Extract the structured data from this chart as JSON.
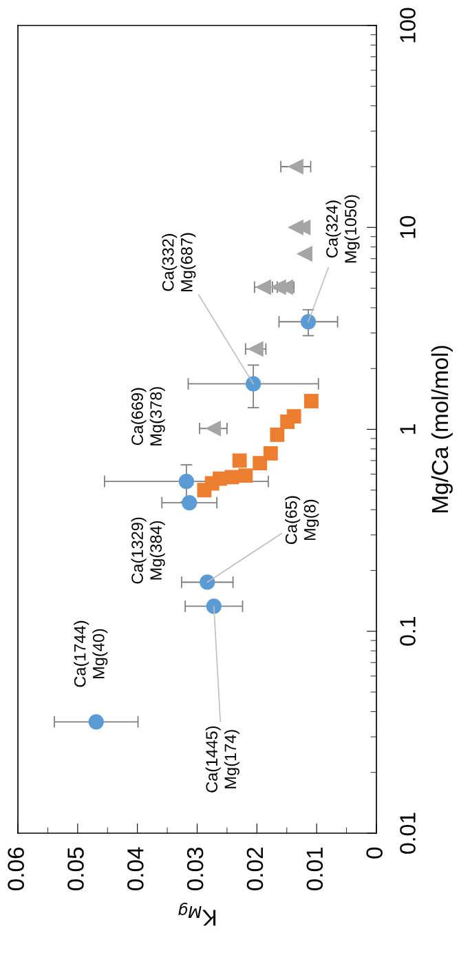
{
  "chart_data": {
    "type": "scatter",
    "xlabel": "K$_{Mg}$",
    "ylabel": "Mg/Ca (mol/mol)",
    "xlim": [
      0.06,
      0
    ],
    "xticks": [
      0.06,
      0.05,
      0.04,
      0.03,
      0.02,
      0.01,
      0
    ],
    "log": "y",
    "ylim": [
      0.01,
      100
    ],
    "yticks": [
      0.01,
      0.1,
      1,
      10,
      100
    ],
    "grid": false,
    "legend": false,
    "series": [
      {
        "color": "#5b9bd5",
        "marker": "circle",
        "x": [
          0.0469,
          0.0272,
          0.0283,
          0.0313,
          0.0318,
          0.0206,
          0.0114
        ],
        "values": [
          0.0356,
          0.133,
          0.175,
          0.433,
          0.552,
          1.68,
          3.41
        ],
        "xerrors": [
          0.007,
          0.0048,
          0.0043,
          0.0046,
          0.0137,
          0.0109,
          0.0049
        ],
        "errors": [
          null,
          null,
          null,
          null,
          0.115,
          0.4,
          0.5
        ]
      },
      {
        "color": "#ed7d31",
        "marker": "square",
        "x": [
          0.0109,
          0.0138,
          0.0149,
          0.0166,
          0.0177,
          0.0195,
          0.0219,
          0.0229,
          0.0242,
          0.0262,
          0.0275,
          0.0288
        ],
        "values": [
          1.38,
          1.16,
          1.09,
          0.94,
          0.76,
          0.68,
          0.59,
          0.7,
          0.58,
          0.57,
          0.54,
          0.5
        ]
      },
      {
        "color": "#a5a5a5",
        "marker": "triangle",
        "x": [
          0.0273,
          0.0202,
          0.0189,
          0.0164,
          0.0152,
          0.012,
          0.0135,
          0.0123,
          0.0135
        ],
        "values": [
          1.01,
          2.5,
          5.06,
          5.06,
          5.06,
          7.4,
          10,
          10,
          20
        ],
        "xerrors": [
          0.0023,
          0.0017,
          0.0015,
          null,
          0.0014,
          null,
          null,
          null,
          0.0025
        ]
      }
    ],
    "annotations": [
      "Ca(1744)\nMg(40)",
      {
        "text": "Ca(1445)\nMg(174)",
        "x": 0.0272,
        "y": 0.133
      },
      {
        "text": "Ca(65)\nMg(8)",
        "x": 0.0283,
        "y": 0.175
      },
      "Ca(1329)\nMg(384)",
      "Ca(669)\nMg(378)",
      {
        "text": "Ca(332)\nMg(687)",
        "x": 0.0206,
        "y": 1.68
      },
      {
        "text": "Ca(324)\nMg(1050)",
        "x": 0.0114,
        "y": 3.41
      }
    ]
  }
}
